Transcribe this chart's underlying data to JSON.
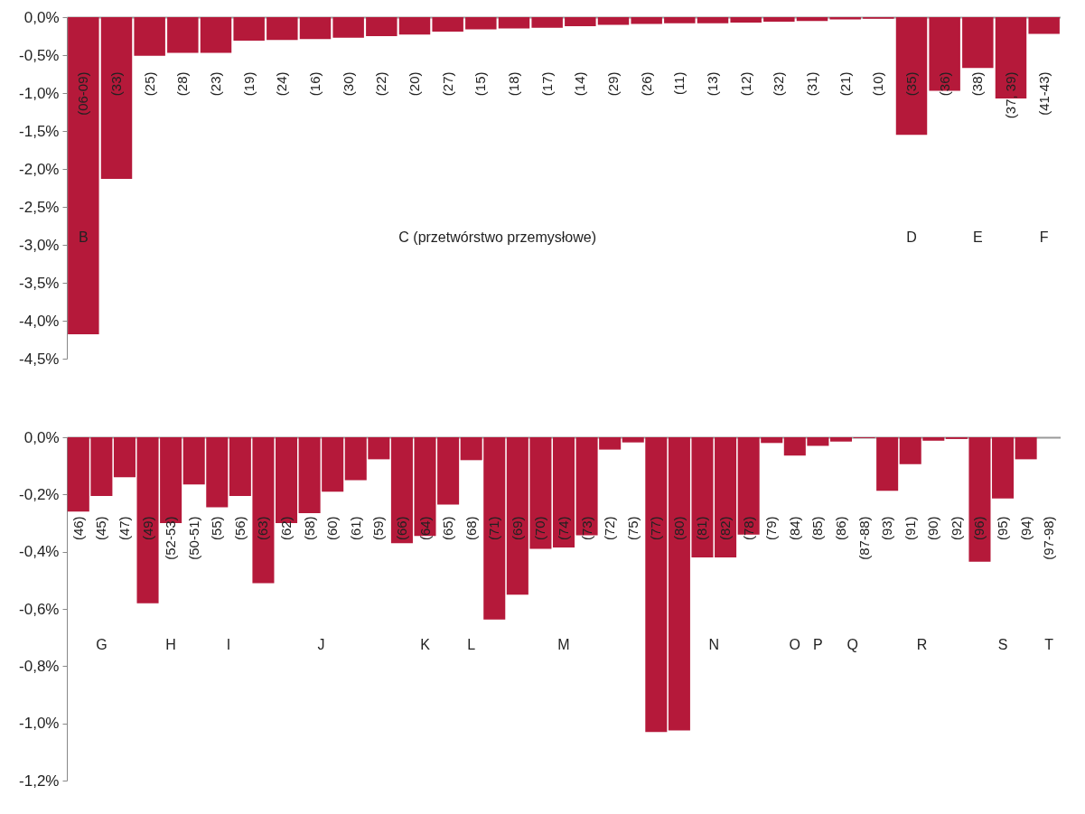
{
  "chart_data": [
    {
      "type": "bar",
      "categories": [
        "(06-09)",
        "(33)",
        "(25)",
        "(28)",
        "(23)",
        "(19)",
        "(24)",
        "(16)",
        "(30)",
        "(22)",
        "(20)",
        "(27)",
        "(15)",
        "(18)",
        "(17)",
        "(14)",
        "(29)",
        "(26)",
        "(11)",
        "(13)",
        "(12)",
        "(32)",
        "(31)",
        "(21)",
        "(10)",
        "(35)",
        "(36)",
        "(38)",
        "(37, 39)",
        "(41-43)"
      ],
      "values": [
        -4.18,
        -2.13,
        -0.51,
        -0.47,
        -0.47,
        -0.31,
        -0.3,
        -0.29,
        -0.27,
        -0.25,
        -0.23,
        -0.19,
        -0.16,
        -0.15,
        -0.14,
        -0.12,
        -0.1,
        -0.09,
        -0.08,
        -0.08,
        -0.07,
        -0.06,
        -0.05,
        -0.03,
        -0.02,
        -1.55,
        -0.97,
        -0.67,
        -1.07,
        -0.22
      ],
      "color": "#b5193a",
      "ylim": [
        -4.5,
        0
      ],
      "yticks": [
        {
          "value": 0,
          "label": "0,0%"
        },
        {
          "value": -0.5,
          "label": "-0,5%"
        },
        {
          "value": -1,
          "label": "-1,0%"
        },
        {
          "value": -1.5,
          "label": "-1,5%"
        },
        {
          "value": -2,
          "label": "-2,0%"
        },
        {
          "value": -2.5,
          "label": "-2,5%"
        },
        {
          "value": -3,
          "label": "-3,0%"
        },
        {
          "value": -3.5,
          "label": "-3,5%"
        },
        {
          "value": -4,
          "label": "-4,0%"
        },
        {
          "value": -4.5,
          "label": "-4,5%"
        }
      ],
      "annotations": [
        "B",
        "C (przetwórstwo przemysłowe)",
        "D",
        "E",
        "F"
      ]
    },
    {
      "type": "bar",
      "categories": [
        "(46)",
        "(45)",
        "(47)",
        "(49)",
        "(52-53)",
        "(50-51)",
        "(55)",
        "(56)",
        "(63)",
        "(62)",
        "(58)",
        "(60)",
        "(61)",
        "(59)",
        "(66)",
        "(64)",
        "(65)",
        "(68)",
        "(71)",
        "(69)",
        "(70)",
        "(74)",
        "(73)",
        "(72)",
        "(75)",
        "(77)",
        "(80)",
        "(81)",
        "(82)",
        "(78)",
        "(79)",
        "(84)",
        "(85)",
        "(86)",
        "(87-88)",
        "(93)",
        "(91)",
        "(90)",
        "(92)",
        "(96)",
        "(95)",
        "(94)",
        "(97-98)"
      ],
      "values": [
        -0.26,
        -0.205,
        -0.14,
        -0.58,
        -0.3,
        -0.165,
        -0.245,
        -0.205,
        -0.51,
        -0.3,
        -0.265,
        -0.19,
        -0.15,
        -0.077,
        -0.37,
        -0.345,
        -0.235,
        -0.08,
        -0.637,
        -0.55,
        -0.39,
        -0.385,
        -0.343,
        -0.043,
        -0.018,
        -1.03,
        -1.025,
        -0.42,
        -0.42,
        -0.34,
        -0.02,
        -0.064,
        -0.03,
        -0.015,
        -0.003,
        -0.187,
        -0.094,
        -0.012,
        -0.006,
        -0.435,
        -0.214,
        -0.077,
        null
      ],
      "color": "#b5193a",
      "ylim": [
        -1.2,
        0
      ],
      "yticks": [
        {
          "value": 0,
          "label": "0,0%"
        },
        {
          "value": -0.2,
          "label": "-0,2%"
        },
        {
          "value": -0.4,
          "label": "-0,4%"
        },
        {
          "value": -0.6,
          "label": "-0,6%"
        },
        {
          "value": -0.8,
          "label": "-0,8%"
        },
        {
          "value": -1,
          "label": "-1,0%"
        },
        {
          "value": -1.2,
          "label": "-1,2%"
        }
      ],
      "annotations": [
        "G",
        "H",
        "I",
        "J",
        "K",
        "L",
        "M",
        "N",
        "O",
        "P",
        "Q",
        "R",
        "S",
        "T"
      ]
    }
  ]
}
